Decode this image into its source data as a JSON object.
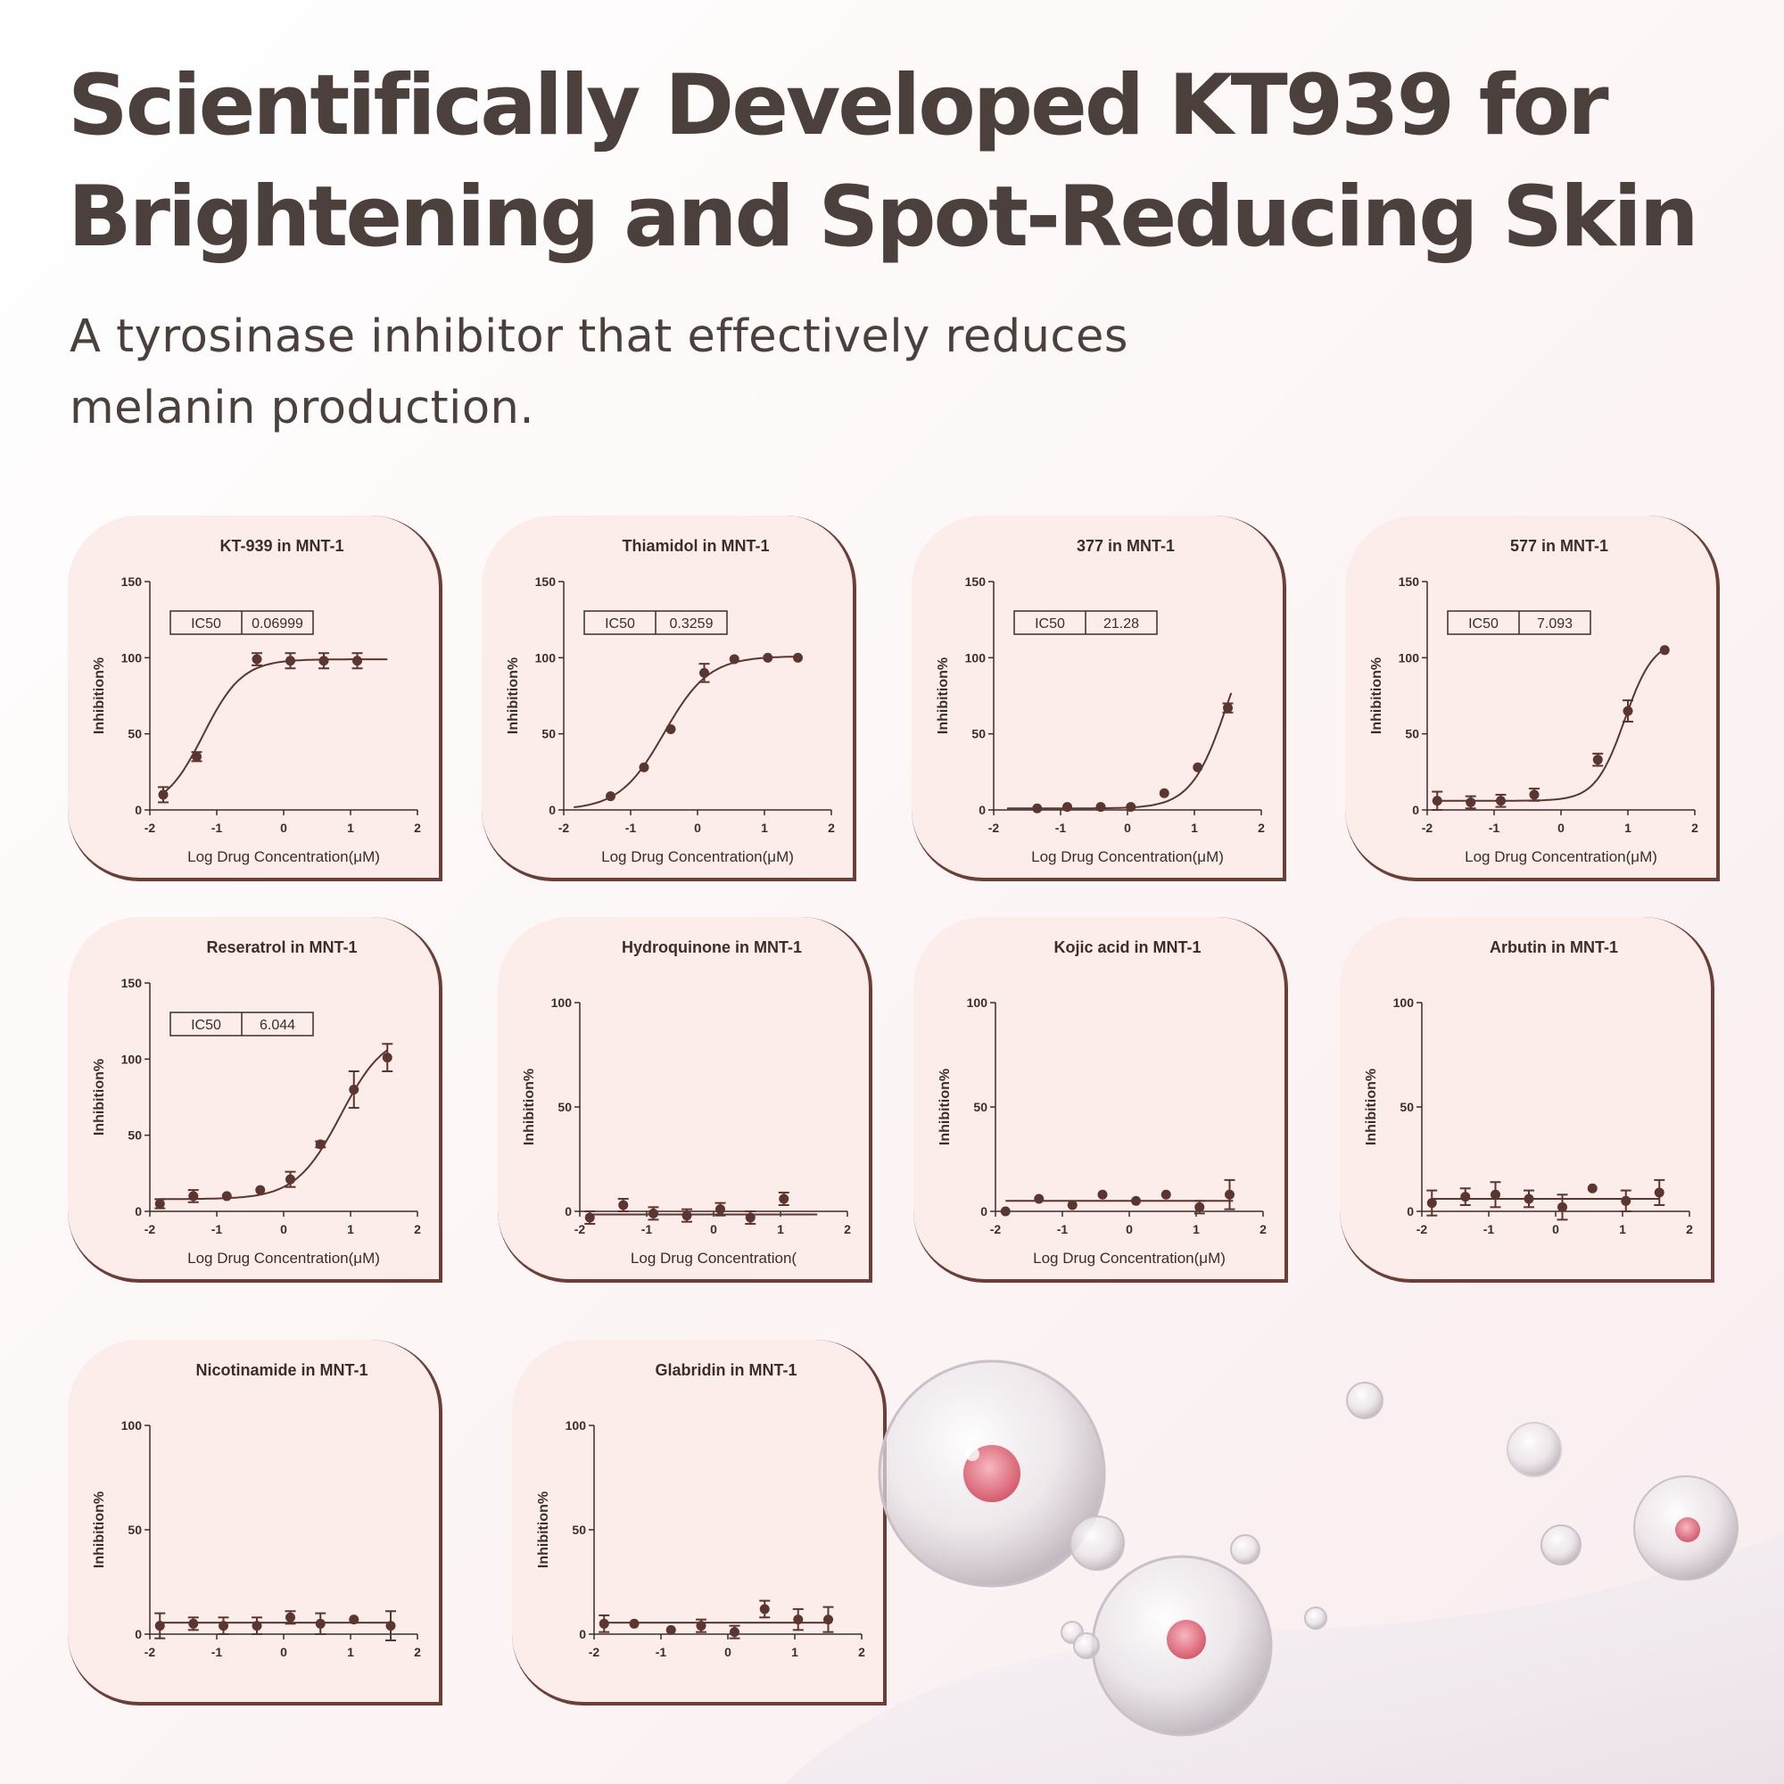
{
  "header": {
    "title_line1": "Scientifically Developed KT939 for",
    "title_line2": "Brightening and Spot-Reducing Skin",
    "subtitle_line1": "A tyrosinase inhibitor that effectively reduces",
    "subtitle_line2": "melanin production."
  },
  "colors": {
    "ink": "#5b3530",
    "card_bg": "#fcecea",
    "card_edge": "#6b3e36",
    "title": "#4b403c"
  },
  "chart_data": [
    {
      "type": "scatter",
      "title": "KT-939 in MNT-1",
      "xlabel": "Log Drug Concentration(μM)",
      "ylabel": "Inhibition%",
      "xlim": [
        -2,
        2
      ],
      "ylim": [
        0,
        150
      ],
      "xticks": [
        "-2",
        "-1",
        "0",
        "1",
        "2"
      ],
      "yticks": [
        "0",
        "50",
        "100",
        "150"
      ],
      "ic50": {
        "label": "IC50",
        "value": "0.06999"
      },
      "x": [
        -1.8,
        -1.3,
        -0.4,
        0.1,
        0.6,
        1.1
      ],
      "y": [
        10,
        35,
        99,
        98,
        98,
        98
      ],
      "err": [
        5,
        3,
        4,
        5,
        5,
        5
      ],
      "fit": {
        "bottom": 0,
        "top": 99,
        "logec50": -1.2,
        "hill": 1.5,
        "x0": -1.85,
        "x1": 1.55
      }
    },
    {
      "type": "scatter",
      "title": "Thiamidol in MNT-1",
      "xlabel": "Log Drug Concentration(μM)",
      "ylabel": "Inhibition%",
      "xlim": [
        -2,
        2
      ],
      "ylim": [
        0,
        150
      ],
      "xticks": [
        "-2",
        "-1",
        "0",
        "1",
        "2"
      ],
      "yticks": [
        "0",
        "50",
        "100",
        "150"
      ],
      "ic50": {
        "label": "IC50",
        "value": "0.3259"
      },
      "x": [
        -1.3,
        -0.8,
        -0.4,
        0.1,
        0.55,
        1.05,
        1.5
      ],
      "y": [
        9,
        28,
        53,
        90,
        99,
        100,
        100
      ],
      "err": [
        0,
        0,
        0,
        6,
        0,
        0,
        0
      ],
      "fit": {
        "bottom": 0,
        "top": 101,
        "logec50": -0.5,
        "hill": 1.3,
        "x0": -1.85,
        "x1": 1.55
      }
    },
    {
      "type": "scatter",
      "title": "377 in MNT-1",
      "xlabel": "Log Drug Concentration(μM)",
      "ylabel": "Inhibition%",
      "xlim": [
        -2,
        2
      ],
      "ylim": [
        0,
        150
      ],
      "xticks": [
        "-2",
        "-1",
        "0",
        "1",
        "2"
      ],
      "yticks": [
        "0",
        "50",
        "100",
        "150"
      ],
      "ic50": {
        "label": "IC50",
        "value": "21.28"
      },
      "x": [
        -1.35,
        -0.9,
        -0.4,
        0.05,
        0.55,
        1.05,
        1.5
      ],
      "y": [
        1,
        2,
        2,
        2,
        11,
        28,
        67
      ],
      "err": [
        0,
        0,
        0,
        0,
        0,
        0,
        3
      ],
      "fit": {
        "bottom": 1,
        "top": 140,
        "logec50": 1.5,
        "hill": 1.6,
        "x0": -1.8,
        "x1": 1.55
      }
    },
    {
      "type": "scatter",
      "title": "577 in MNT-1",
      "xlabel": "Log Drug Concentration(μM)",
      "ylabel": "Inhibition%",
      "xlim": [
        -2,
        2
      ],
      "ylim": [
        0,
        150
      ],
      "xticks": [
        "-2",
        "-1",
        "0",
        "1",
        "2"
      ],
      "yticks": [
        "0",
        "50",
        "100",
        "150"
      ],
      "ic50": {
        "label": "IC50",
        "value": "7.093"
      },
      "x": [
        -1.85,
        -1.35,
        -0.9,
        -0.4,
        0.55,
        1.0,
        1.55
      ],
      "y": [
        6,
        5,
        6,
        10,
        33,
        65,
        105
      ],
      "err": [
        6,
        4,
        4,
        4,
        4,
        7,
        0
      ],
      "fit": {
        "bottom": 6,
        "top": 112,
        "logec50": 0.95,
        "hill": 2.0,
        "x0": -1.85,
        "x1": 1.5
      }
    },
    {
      "type": "scatter",
      "title": "Reseratrol in MNT-1",
      "xlabel": "Log Drug Concentration(μM)",
      "ylabel": "Inhibition%",
      "xlim": [
        -2,
        2
      ],
      "ylim": [
        0,
        150
      ],
      "xticks": [
        "-2",
        "-1",
        "0",
        "1",
        "2"
      ],
      "yticks": [
        "0",
        "50",
        "100",
        "150"
      ],
      "ic50": {
        "label": "IC50",
        "value": "6.044"
      },
      "x": [
        -1.85,
        -1.35,
        -0.85,
        -0.35,
        0.1,
        0.55,
        1.05,
        1.55
      ],
      "y": [
        5,
        10,
        10,
        14,
        21,
        44,
        80,
        101
      ],
      "err": [
        3,
        4,
        0,
        0,
        5,
        2,
        12,
        9
      ],
      "fit": {
        "bottom": 8,
        "top": 118,
        "logec50": 0.85,
        "hill": 1.3,
        "x0": -1.85,
        "x1": 1.55
      }
    },
    {
      "type": "scatter",
      "title": "Hydroquinone in MNT-1",
      "xlabel": "Log Drug Concentration(",
      "ylabel": "Inhibition%",
      "xlim": [
        -2,
        2
      ],
      "ylim": [
        0,
        100
      ],
      "xticks": [
        "-2",
        "-1",
        "0",
        "1",
        "2"
      ],
      "yticks": [
        "0",
        "50",
        "100"
      ],
      "x": [
        -1.85,
        -1.35,
        -0.9,
        -0.4,
        0.1,
        0.55,
        1.05
      ],
      "y": [
        -3,
        3,
        -1,
        -2,
        1,
        -3,
        6
      ],
      "err": [
        3,
        3,
        3,
        3,
        3,
        3,
        3
      ],
      "fit": {
        "flat": -1.5,
        "x0": -1.85,
        "x1": 1.55
      }
    },
    {
      "type": "scatter",
      "title": "Kojic acid in MNT-1",
      "xlabel": "Log Drug Concentration(μM)",
      "ylabel": "Inhibition%",
      "xlim": [
        -2,
        2
      ],
      "ylim": [
        0,
        100
      ],
      "xticks": [
        "-2",
        "-1",
        "0",
        "1",
        "2"
      ],
      "yticks": [
        "0",
        "50",
        "100"
      ],
      "x": [
        -1.85,
        -1.35,
        -0.85,
        -0.4,
        0.1,
        0.55,
        1.05,
        1.5
      ],
      "y": [
        0,
        6,
        3,
        8,
        5,
        8,
        2,
        8
      ],
      "err": [
        0,
        0,
        0,
        0,
        0,
        0,
        3,
        7
      ],
      "fit": {
        "flat": 5,
        "x0": -1.85,
        "x1": 1.55
      }
    },
    {
      "type": "scatter",
      "title": "Arbutin in MNT-1",
      "xlabel": "",
      "ylabel": "Inhibition%",
      "xlim": [
        -2,
        2
      ],
      "ylim": [
        0,
        100
      ],
      "xticks": [
        "-2",
        "-1",
        "0",
        "1",
        "2"
      ],
      "yticks": [
        "0",
        "50",
        "100"
      ],
      "x": [
        -1.85,
        -1.35,
        -0.9,
        -0.4,
        0.1,
        0.55,
        1.05,
        1.55
      ],
      "y": [
        4,
        7,
        8,
        6,
        2,
        11,
        5,
        9
      ],
      "err": [
        6,
        4,
        6,
        4,
        6,
        0,
        5,
        6
      ],
      "fit": {
        "flat": 6,
        "x0": -1.85,
        "x1": 1.55
      }
    },
    {
      "type": "scatter",
      "title": "Nicotinamide in MNT-1",
      "xlabel": "",
      "ylabel": "Inhibition%",
      "xlim": [
        -2,
        2
      ],
      "ylim": [
        0,
        100
      ],
      "xticks": [
        "-2",
        "-1",
        "0",
        "1",
        "2"
      ],
      "yticks": [
        "0",
        "50",
        "100"
      ],
      "x": [
        -1.85,
        -1.35,
        -0.9,
        -0.4,
        0.1,
        0.55,
        1.05,
        1.6
      ],
      "y": [
        4,
        5,
        4,
        4,
        8,
        5,
        7,
        4
      ],
      "err": [
        6,
        3,
        4,
        4,
        3,
        5,
        0,
        7
      ],
      "fit": {
        "flat": 5.5,
        "x0": -1.85,
        "x1": 1.6
      }
    },
    {
      "type": "scatter",
      "title": "Glabridin in MNT-1",
      "xlabel": "",
      "ylabel": "Inhibition%",
      "xlim": [
        -2,
        2
      ],
      "ylim": [
        0,
        100
      ],
      "xticks": [
        "-2",
        "-1",
        "0",
        "1",
        "2"
      ],
      "yticks": [
        "0",
        "50",
        "100"
      ],
      "x": [
        -1.85,
        -1.4,
        -0.85,
        -0.4,
        0.1,
        0.55,
        1.05,
        1.5
      ],
      "y": [
        5,
        5,
        2,
        4,
        1,
        12,
        7,
        7
      ],
      "err": [
        4,
        0,
        0,
        3,
        3,
        4,
        5,
        6
      ],
      "fit": {
        "flat": 5.5,
        "x0": -1.85,
        "x1": 1.55
      }
    }
  ]
}
